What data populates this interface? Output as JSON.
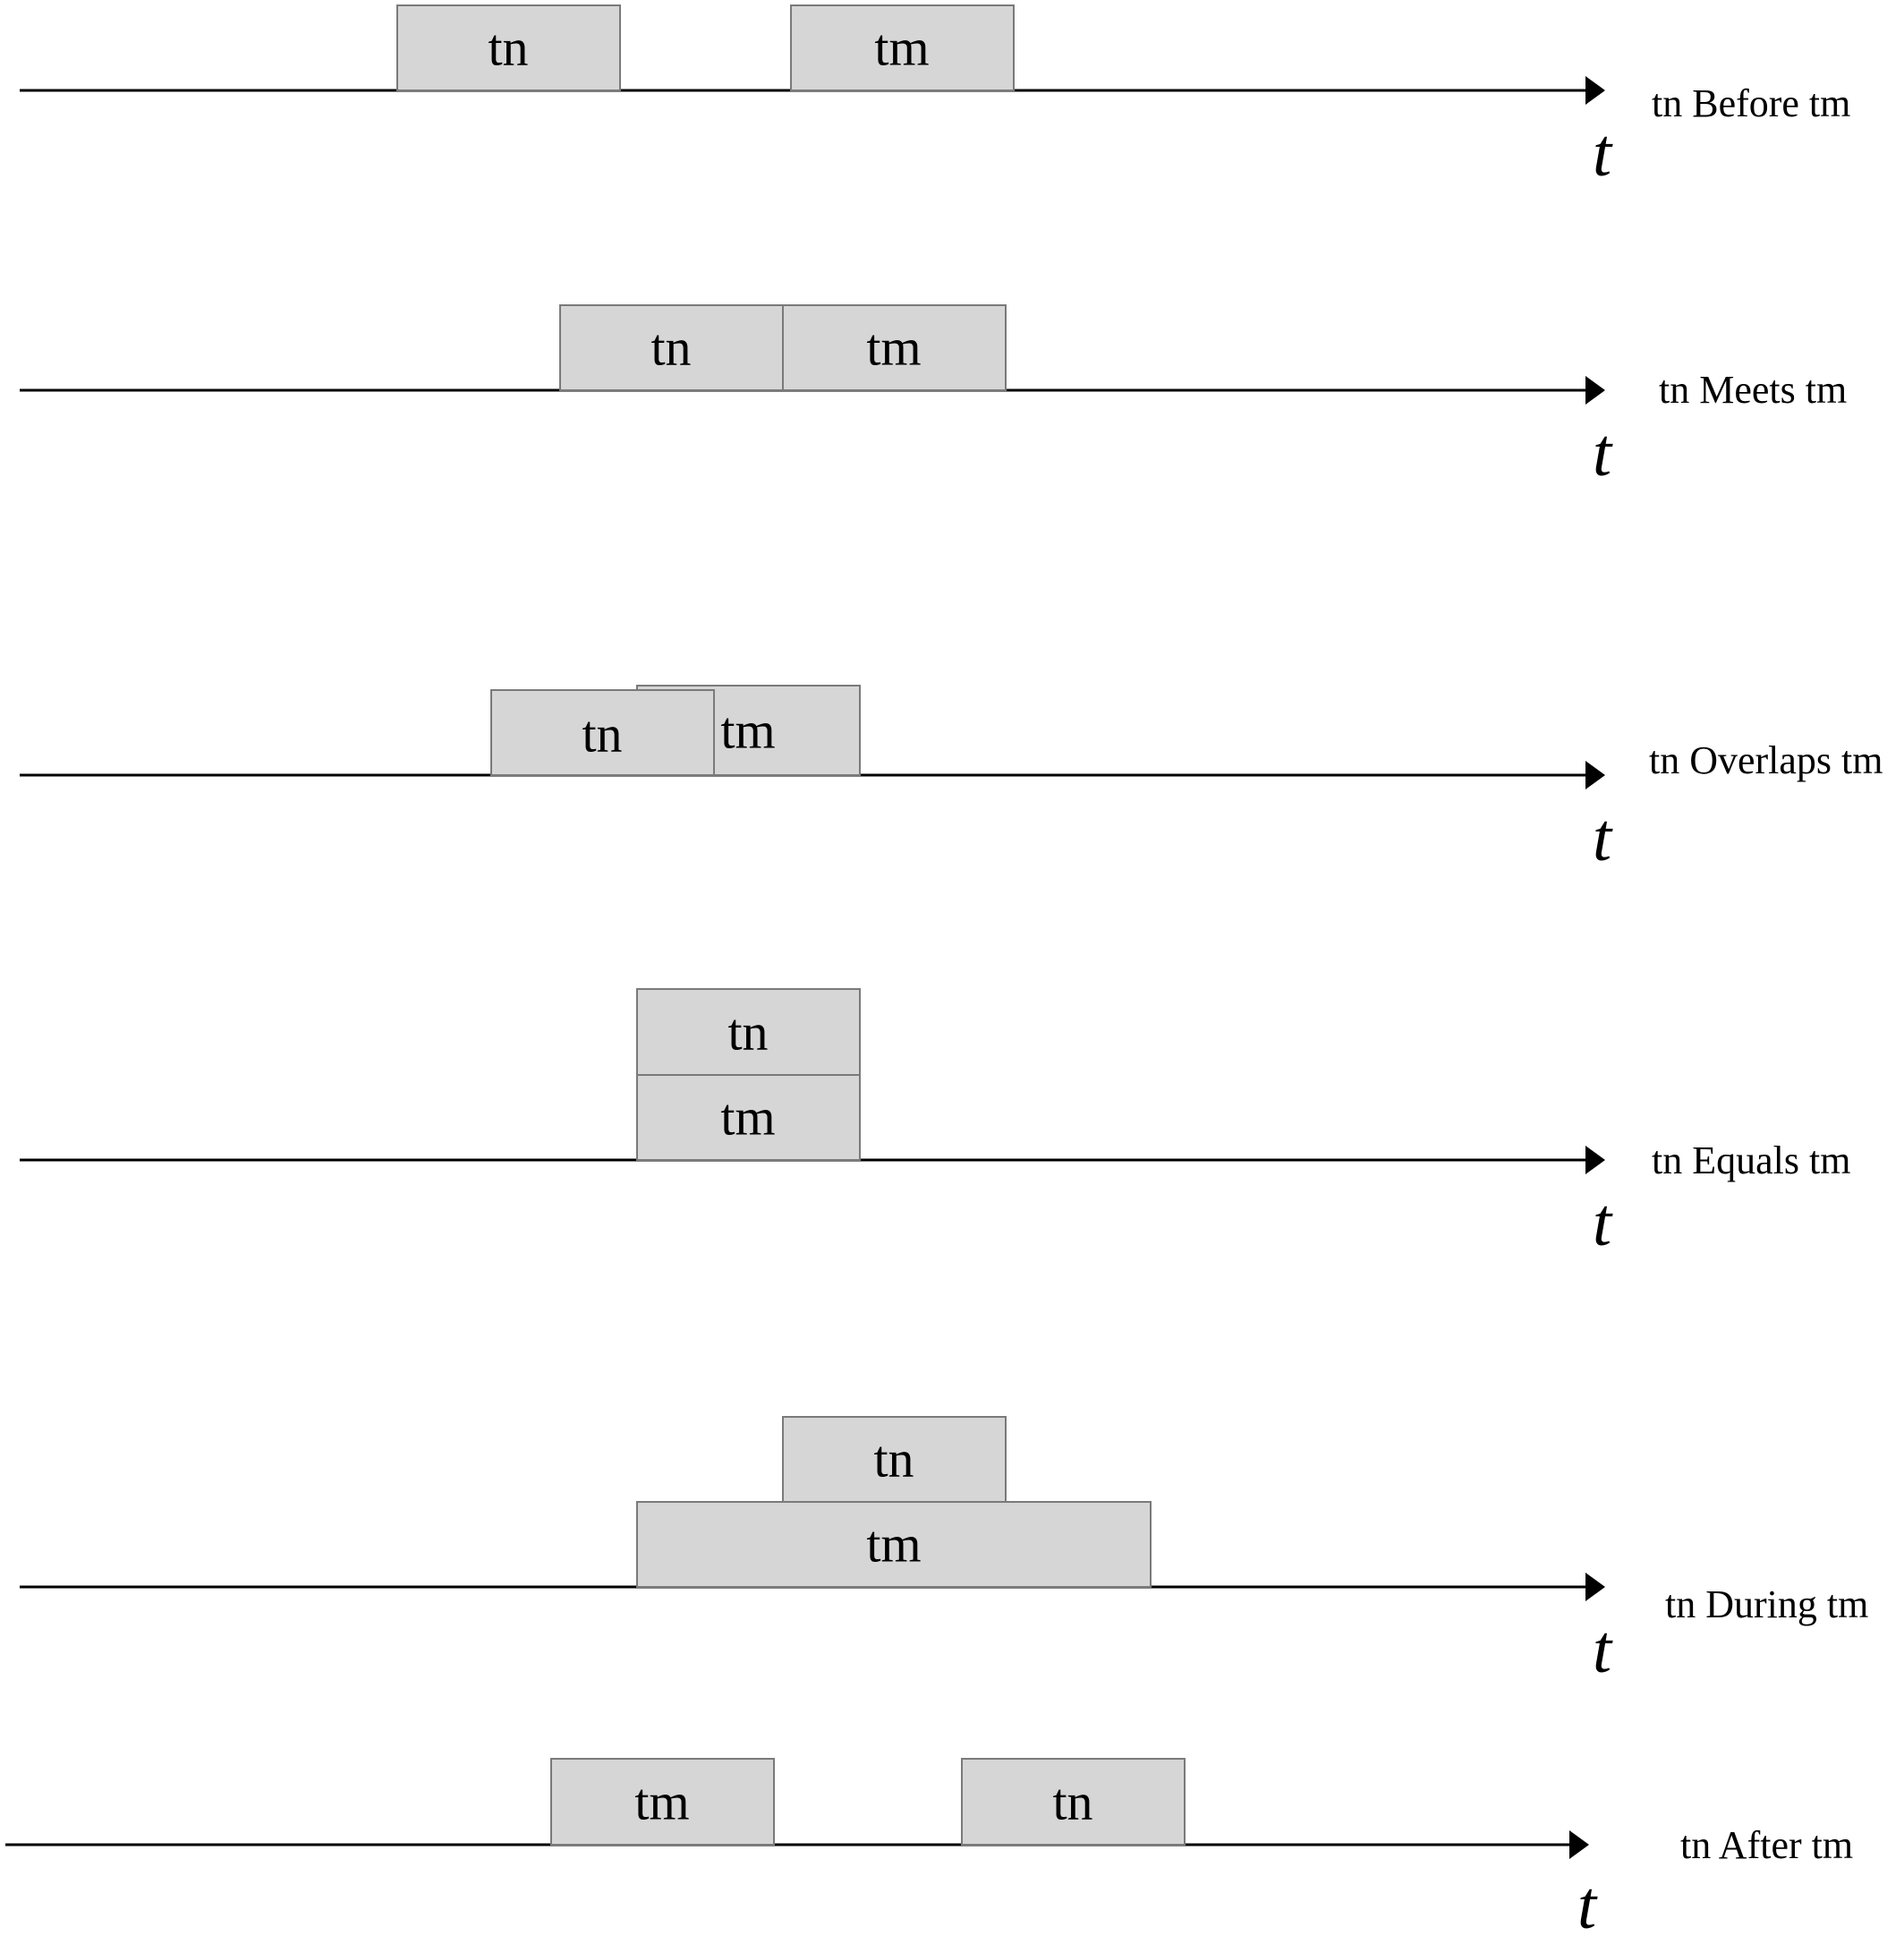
{
  "axis_symbol": "t",
  "rows": [
    {
      "relation": "tn Before tm",
      "boxes": [
        {
          "label": "tn"
        },
        {
          "label": "tm"
        }
      ]
    },
    {
      "relation": "tn Meets tm",
      "boxes": [
        {
          "label": "tn"
        },
        {
          "label": "tm"
        }
      ]
    },
    {
      "relation": "tn Overlaps tm",
      "boxes": [
        {
          "label": "tm"
        },
        {
          "label": "tn"
        }
      ]
    },
    {
      "relation": "tn Equals tm",
      "boxes": [
        {
          "label": "tn"
        },
        {
          "label": "tm"
        }
      ]
    },
    {
      "relation": "tn During tm",
      "boxes": [
        {
          "label": "tn"
        },
        {
          "label": "tm"
        }
      ]
    },
    {
      "relation": "tn After tm",
      "boxes": [
        {
          "label": "tm"
        },
        {
          "label": "tn"
        }
      ]
    }
  ]
}
